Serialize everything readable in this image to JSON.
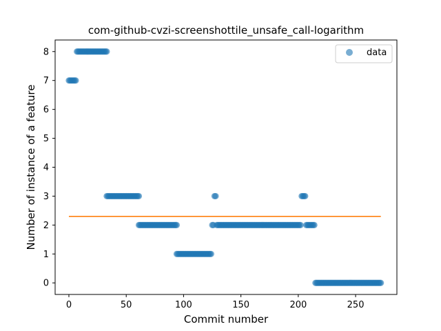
{
  "chart_data": {
    "type": "scatter",
    "title": "com-github-cvzi-screenshottile_unsafe_call-logarithm",
    "xlabel": "Commit number",
    "ylabel": "Number of instance of a feature",
    "xlim": [
      -12,
      286
    ],
    "ylim": [
      -0.4,
      8.4
    ],
    "xticks": [
      0,
      50,
      100,
      150,
      200,
      250
    ],
    "yticks": [
      0,
      1,
      2,
      3,
      4,
      5,
      6,
      7,
      8
    ],
    "legend": {
      "placement": "top-right",
      "entries": [
        "data"
      ]
    },
    "colors": {
      "points": "#1f77b4",
      "trend": "#ff7f0e"
    },
    "grid": false,
    "series": [
      {
        "name": "data",
        "kind": "scatter",
        "segments": [
          {
            "x_start": 0,
            "x_end": 6,
            "y": 7
          },
          {
            "x_start": 7,
            "x_end": 33,
            "y": 8
          },
          {
            "x_start": 33,
            "x_end": 61,
            "y": 3
          },
          {
            "x_start": 61,
            "x_end": 94,
            "y": 2
          },
          {
            "x_start": 94,
            "x_end": 124,
            "y": 1
          },
          {
            "x_start": 125,
            "x_end": 126,
            "y": 2
          },
          {
            "x_start": 127,
            "x_end": 128,
            "y": 3
          },
          {
            "x_start": 129,
            "x_end": 202,
            "y": 2
          },
          {
            "x_start": 203,
            "x_end": 206,
            "y": 3
          },
          {
            "x_start": 207,
            "x_end": 214,
            "y": 2
          },
          {
            "x_start": 215,
            "x_end": 272,
            "y": 0
          }
        ]
      },
      {
        "name": "",
        "kind": "line",
        "x": [
          0,
          272
        ],
        "y": [
          2.3,
          2.3
        ]
      }
    ]
  }
}
